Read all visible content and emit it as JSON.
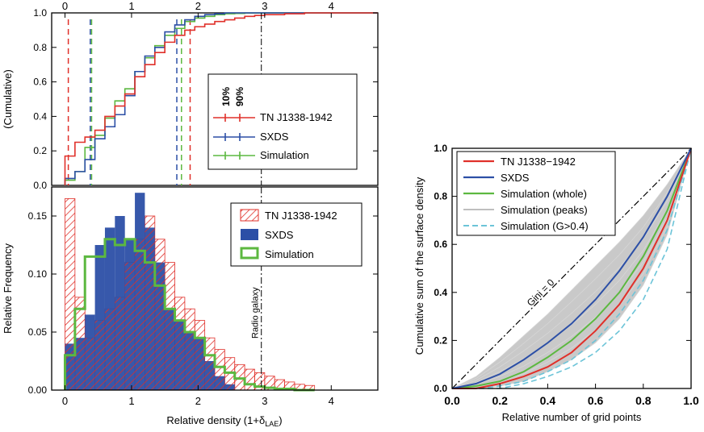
{
  "colors": {
    "tn": "#e0302a",
    "sxds": "#2c4fa6",
    "sim": "#5cb840",
    "peaks": "#bfbfbf",
    "g04": "#6cc4d8"
  },
  "chart_data": [
    {
      "id": "cumulative",
      "type": "line",
      "xlim": [
        -0.2,
        4.7
      ],
      "ylim": [
        0,
        1.0
      ],
      "top_ticks": [
        "0",
        "1",
        "2",
        "3",
        "4"
      ],
      "top_tick_values": [
        0,
        1,
        2,
        3,
        4
      ],
      "yticks": [
        "0.0",
        "0.2",
        "0.4",
        "0.6",
        "0.8",
        "1.0"
      ],
      "ytick_values": [
        0,
        0.2,
        0.4,
        0.6,
        0.8,
        1.0
      ],
      "ylabel": "(Cumulative)",
      "vlines": [
        {
          "series": "tn",
          "x": 0.05
        },
        {
          "series": "tn",
          "x": 1.88
        },
        {
          "series": "sxds",
          "x": 0.38
        },
        {
          "series": "sxds",
          "x": 1.68
        },
        {
          "series": "sim",
          "x": 0.4
        },
        {
          "series": "sim",
          "x": 1.75
        }
      ],
      "radio_x": 2.95,
      "legend_header": [
        "10%",
        "90%"
      ],
      "legend": [
        "TN J1338-1942",
        "SXDS",
        "Simulation"
      ],
      "series": {
        "tn": {
          "x": [
            0.0,
            0.15,
            0.3,
            0.45,
            0.6,
            0.75,
            0.9,
            1.05,
            1.2,
            1.35,
            1.5,
            1.65,
            1.8,
            1.95,
            2.1,
            2.25,
            2.4,
            2.55,
            2.7,
            2.85,
            3.0,
            3.3,
            3.6,
            4.0
          ],
          "y": [
            0.17,
            0.25,
            0.28,
            0.32,
            0.4,
            0.46,
            0.53,
            0.63,
            0.7,
            0.77,
            0.83,
            0.87,
            0.9,
            0.92,
            0.935,
            0.95,
            0.96,
            0.97,
            0.98,
            0.985,
            0.99,
            0.995,
            1.0,
            1.0
          ]
        },
        "sxds": {
          "x": [
            0.0,
            0.15,
            0.3,
            0.45,
            0.6,
            0.75,
            0.9,
            1.05,
            1.2,
            1.35,
            1.5,
            1.65,
            1.8,
            1.95,
            2.1,
            2.25,
            2.4,
            2.6
          ],
          "y": [
            0.04,
            0.08,
            0.15,
            0.27,
            0.34,
            0.41,
            0.52,
            0.66,
            0.75,
            0.8,
            0.89,
            0.93,
            0.96,
            0.98,
            0.99,
            0.995,
            1.0,
            1.0
          ]
        },
        "sim": {
          "x": [
            0.0,
            0.15,
            0.3,
            0.45,
            0.6,
            0.75,
            0.9,
            1.05,
            1.2,
            1.35,
            1.5,
            1.65,
            1.8,
            1.95,
            2.1,
            2.25,
            2.4,
            2.55,
            2.7,
            3.0,
            3.4
          ],
          "y": [
            0.03,
            0.08,
            0.22,
            0.29,
            0.39,
            0.49,
            0.56,
            0.66,
            0.74,
            0.81,
            0.87,
            0.91,
            0.95,
            0.97,
            0.98,
            0.99,
            0.995,
            0.997,
            0.999,
            1.0,
            1.0
          ]
        }
      }
    },
    {
      "id": "histogram",
      "type": "bar",
      "xlim": [
        -0.2,
        4.7
      ],
      "ylim": [
        0,
        0.175
      ],
      "xticks": [
        "0",
        "1",
        "2",
        "3",
        "4"
      ],
      "xtick_values": [
        0,
        1,
        2,
        3,
        4
      ],
      "yticks": [
        "0.00",
        "0.05",
        "0.10",
        "0.15"
      ],
      "ytick_values": [
        0,
        0.05,
        0.1,
        0.15
      ],
      "xlabel": "Relative density (1+δ",
      "xlabel_sub": "LAE",
      "xlabel_end": ")",
      "ylabel": "Relative Frequency",
      "annotation": "Radio galaxy",
      "radio_x": 2.95,
      "bin_width": 0.15,
      "legend": [
        "TN J1338-1942",
        "SXDS",
        "Simulation"
      ],
      "bin_edges": [
        0.0,
        0.15,
        0.3,
        0.45,
        0.6,
        0.75,
        0.9,
        1.05,
        1.2,
        1.35,
        1.5,
        1.65,
        1.8,
        1.95,
        2.1,
        2.25,
        2.4,
        2.55,
        2.7,
        2.85,
        3.0,
        3.15,
        3.3,
        3.45,
        3.6,
        3.75
      ],
      "series": {
        "tn": [
          0.165,
          0.08,
          0.045,
          0.06,
          0.07,
          0.08,
          0.11,
          0.13,
          0.15,
          0.13,
          0.11,
          0.08,
          0.07,
          0.06,
          0.045,
          0.035,
          0.028,
          0.022,
          0.018,
          0.015,
          0.012,
          0.009,
          0.007,
          0.005,
          0.004
        ],
        "sxds": [
          0.04,
          0.045,
          0.065,
          0.125,
          0.14,
          0.15,
          0.13,
          0.17,
          0.14,
          0.11,
          0.07,
          0.06,
          0.05,
          0.045,
          0.025,
          0.012,
          0.005,
          0.0,
          0.0,
          0.0,
          0.0,
          0.0,
          0.0,
          0.0,
          0.0
        ],
        "sim": [
          0.03,
          0.07,
          0.115,
          0.115,
          0.13,
          0.125,
          0.13,
          0.12,
          0.11,
          0.09,
          0.07,
          0.06,
          0.05,
          0.045,
          0.03,
          0.02,
          0.015,
          0.01,
          0.005,
          0.003,
          0.002,
          0.001,
          0.001,
          0.0,
          0.0
        ]
      }
    },
    {
      "id": "lorenz",
      "type": "line",
      "xlim": [
        0,
        1.0
      ],
      "ylim": [
        0,
        1.0
      ],
      "xticks": [
        "0.0",
        "0.2",
        "0.4",
        "0.6",
        "0.8",
        "1.0"
      ],
      "xtick_values": [
        0,
        0.2,
        0.4,
        0.6,
        0.8,
        1.0
      ],
      "yticks": [
        "0.0",
        "0.2",
        "0.4",
        "0.6",
        "0.8",
        "1.0"
      ],
      "ytick_values": [
        0,
        0.2,
        0.4,
        0.6,
        0.8,
        1.0
      ],
      "xlabel": "Relative number of grid points",
      "ylabel": "Cumulative sum of the surface density",
      "diag_label": "Gini = 0",
      "legend": [
        "TN J1338−1942",
        "SXDS",
        "Simulation (whole)",
        "Simulation (peaks)",
        "Simulation (G>0.4)"
      ],
      "series": {
        "tn": {
          "x": [
            0,
            0.1,
            0.2,
            0.3,
            0.4,
            0.5,
            0.6,
            0.7,
            0.8,
            0.9,
            1.0
          ],
          "y": [
            0,
            0.0,
            0.02,
            0.05,
            0.09,
            0.15,
            0.24,
            0.35,
            0.5,
            0.7,
            1.0
          ]
        },
        "sxds": {
          "x": [
            0,
            0.1,
            0.2,
            0.3,
            0.4,
            0.5,
            0.6,
            0.7,
            0.8,
            0.9,
            1.0
          ],
          "y": [
            0,
            0.02,
            0.06,
            0.12,
            0.19,
            0.27,
            0.37,
            0.49,
            0.63,
            0.8,
            1.0
          ]
        },
        "sim": {
          "x": [
            0,
            0.1,
            0.2,
            0.3,
            0.4,
            0.5,
            0.6,
            0.7,
            0.8,
            0.9,
            1.0
          ],
          "y": [
            0,
            0.01,
            0.03,
            0.07,
            0.13,
            0.2,
            0.29,
            0.4,
            0.55,
            0.74,
            1.0
          ]
        },
        "peaks_band": {
          "x": [
            0,
            0.1,
            0.2,
            0.3,
            0.4,
            0.5,
            0.6,
            0.7,
            0.8,
            0.9,
            1.0
          ],
          "upper": [
            0,
            0.05,
            0.13,
            0.22,
            0.31,
            0.41,
            0.51,
            0.61,
            0.72,
            0.85,
            1.0
          ],
          "lower": [
            0,
            0.0,
            0.01,
            0.03,
            0.07,
            0.12,
            0.19,
            0.29,
            0.43,
            0.64,
            1.0
          ]
        },
        "g04": [
          {
            "x": [
              0,
              0.1,
              0.2,
              0.3,
              0.4,
              0.5,
              0.6,
              0.7,
              0.8,
              0.9,
              1.0
            ],
            "y": [
              0,
              0.0,
              0.0,
              0.02,
              0.05,
              0.09,
              0.15,
              0.24,
              0.37,
              0.58,
              1.0
            ]
          },
          {
            "x": [
              0,
              0.1,
              0.2,
              0.3,
              0.4,
              0.5,
              0.6,
              0.7,
              0.8,
              0.9,
              1.0
            ],
            "y": [
              0,
              0.0,
              0.01,
              0.03,
              0.07,
              0.12,
              0.2,
              0.31,
              0.45,
              0.66,
              1.0
            ]
          }
        ]
      }
    }
  ]
}
